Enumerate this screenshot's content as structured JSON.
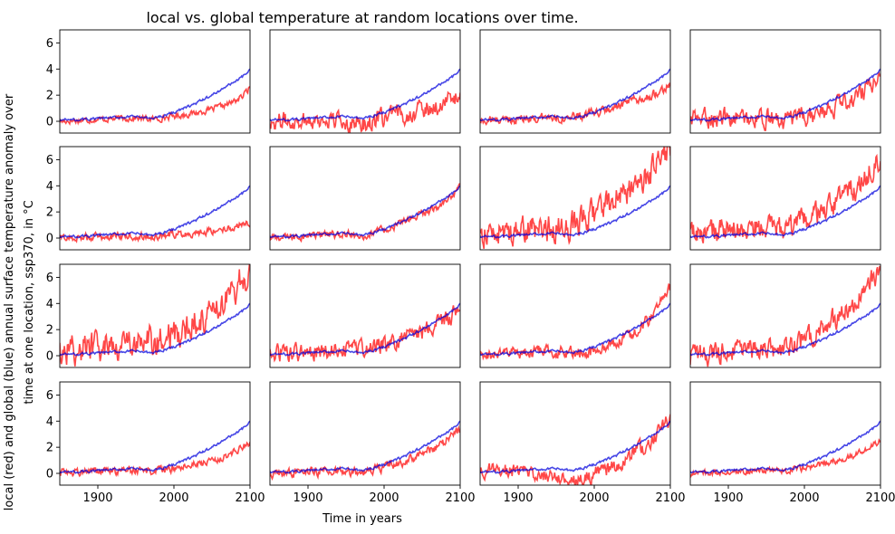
{
  "chart_data": {
    "type": "line",
    "title": "local vs. global temperature at random locations over time.",
    "xlabel": "Time in years",
    "ylabel_line1": "local (red) and global (blue) annual surface temperature anomaly over",
    "ylabel_line2": "time at one location, ssp370, in °C",
    "xlim": [
      1850,
      2100
    ],
    "ylim": [
      -0.9,
      7.0
    ],
    "xticks": [
      1900,
      2000,
      2100
    ],
    "yticks": [
      0,
      2,
      4,
      6
    ],
    "grid": false,
    "layout": {
      "rows": 4,
      "cols": 4
    },
    "series_colors": {
      "local": "#ff0000",
      "global": "#0000dd"
    },
    "global_series": {
      "name": "global",
      "x": [
        1850,
        1875,
        1900,
        1925,
        1950,
        1970,
        1990,
        2010,
        2030,
        2050,
        2070,
        2090,
        2100
      ],
      "y": [
        0.1,
        0.12,
        0.2,
        0.3,
        0.35,
        0.2,
        0.5,
        0.9,
        1.4,
        2.0,
        2.7,
        3.4,
        3.9
      ]
    },
    "panels": [
      {
        "x": [
          1850,
          1900,
          1950,
          1975,
          2000,
          2025,
          2050,
          2075,
          2090,
          2100
        ],
        "y": [
          0.0,
          0.15,
          0.25,
          0.15,
          0.4,
          0.6,
          0.9,
          1.4,
          1.9,
          2.6
        ],
        "noise": 0.2
      },
      {
        "x": [
          1850,
          1900,
          1950,
          1975,
          2000,
          2025,
          2050,
          2075,
          2090,
          2100
        ],
        "y": [
          0.0,
          0.1,
          0.0,
          -0.2,
          0.3,
          0.5,
          0.9,
          1.3,
          1.7,
          2.0
        ],
        "noise": 0.6
      },
      {
        "x": [
          1850,
          1900,
          1950,
          1975,
          2000,
          2025,
          2050,
          2075,
          2090,
          2100
        ],
        "y": [
          0.0,
          0.2,
          0.3,
          0.3,
          0.6,
          1.0,
          1.5,
          2.0,
          2.5,
          2.8
        ],
        "noise": 0.3
      },
      {
        "x": [
          1850,
          1900,
          1950,
          1975,
          2000,
          2025,
          2050,
          2075,
          2090,
          2100
        ],
        "y": [
          0.2,
          0.3,
          0.2,
          0.0,
          0.3,
          0.7,
          1.3,
          2.2,
          3.0,
          3.2
        ],
        "noise": 0.6
      },
      {
        "x": [
          1850,
          1900,
          1950,
          1975,
          2000,
          2025,
          2050,
          2075,
          2090,
          2100
        ],
        "y": [
          0.0,
          0.1,
          0.15,
          0.1,
          0.3,
          0.4,
          0.6,
          0.8,
          1.0,
          1.1
        ],
        "noise": 0.25
      },
      {
        "x": [
          1850,
          1900,
          1950,
          1975,
          2000,
          2025,
          2050,
          2075,
          2090,
          2100
        ],
        "y": [
          0.0,
          0.15,
          0.3,
          0.2,
          0.6,
          1.2,
          1.8,
          2.6,
          3.3,
          3.9
        ],
        "noise": 0.25
      },
      {
        "x": [
          1850,
          1900,
          1950,
          1975,
          2000,
          2025,
          2050,
          2075,
          2090,
          2100
        ],
        "y": [
          0.3,
          0.5,
          0.8,
          1.0,
          1.9,
          3.0,
          3.8,
          5.0,
          6.2,
          7.0
        ],
        "noise": 0.9
      },
      {
        "x": [
          1850,
          1900,
          1950,
          1975,
          2000,
          2025,
          2050,
          2075,
          2090,
          2100
        ],
        "y": [
          0.3,
          0.6,
          0.8,
          0.6,
          1.2,
          2.0,
          3.0,
          4.2,
          5.5,
          6.3
        ],
        "noise": 0.8
      },
      {
        "x": [
          1850,
          1900,
          1950,
          1975,
          2000,
          2025,
          2050,
          2075,
          2090,
          2100
        ],
        "y": [
          0.4,
          0.8,
          1.0,
          1.0,
          1.7,
          2.5,
          3.5,
          4.8,
          6.0,
          6.2
        ],
        "noise": 1.0
      },
      {
        "x": [
          1850,
          1900,
          1950,
          1975,
          2000,
          2025,
          2050,
          2075,
          2090,
          2100
        ],
        "y": [
          0.1,
          0.3,
          0.5,
          0.5,
          0.9,
          1.3,
          1.9,
          2.6,
          3.2,
          3.6
        ],
        "noise": 0.55
      },
      {
        "x": [
          1850,
          1900,
          1950,
          1975,
          2000,
          2025,
          2050,
          2075,
          2090,
          2100
        ],
        "y": [
          0.0,
          0.2,
          0.3,
          0.2,
          0.3,
          0.9,
          1.7,
          3.0,
          4.3,
          5.2
        ],
        "noise": 0.4
      },
      {
        "x": [
          1850,
          1900,
          1950,
          1975,
          2000,
          2025,
          2050,
          2075,
          2090,
          2100
        ],
        "y": [
          0.0,
          0.3,
          0.5,
          0.5,
          1.2,
          2.2,
          3.3,
          4.6,
          6.0,
          6.6
        ],
        "noise": 0.7
      },
      {
        "x": [
          1850,
          1900,
          1950,
          1975,
          2000,
          2025,
          2050,
          2075,
          2090,
          2100
        ],
        "y": [
          0.1,
          0.15,
          0.2,
          0.2,
          0.4,
          0.7,
          1.0,
          1.5,
          2.0,
          2.3
        ],
        "noise": 0.25
      },
      {
        "x": [
          1850,
          1900,
          1950,
          1975,
          2000,
          2025,
          2050,
          2075,
          2090,
          2100
        ],
        "y": [
          0.0,
          0.1,
          0.2,
          0.1,
          0.5,
          0.9,
          1.5,
          2.2,
          2.9,
          3.4
        ],
        "noise": 0.3
      },
      {
        "x": [
          1850,
          1900,
          1950,
          1975,
          2000,
          2025,
          2050,
          2075,
          2090,
          2100
        ],
        "y": [
          0.3,
          0.2,
          -0.2,
          -0.5,
          -0.1,
          0.5,
          1.4,
          2.5,
          3.5,
          4.3
        ],
        "noise": 0.5
      },
      {
        "x": [
          1850,
          1900,
          1950,
          1975,
          2000,
          2025,
          2050,
          2075,
          2090,
          2100
        ],
        "y": [
          0.0,
          0.1,
          0.2,
          0.2,
          0.4,
          0.7,
          1.1,
          1.6,
          2.2,
          2.5
        ],
        "noise": 0.2
      }
    ]
  }
}
